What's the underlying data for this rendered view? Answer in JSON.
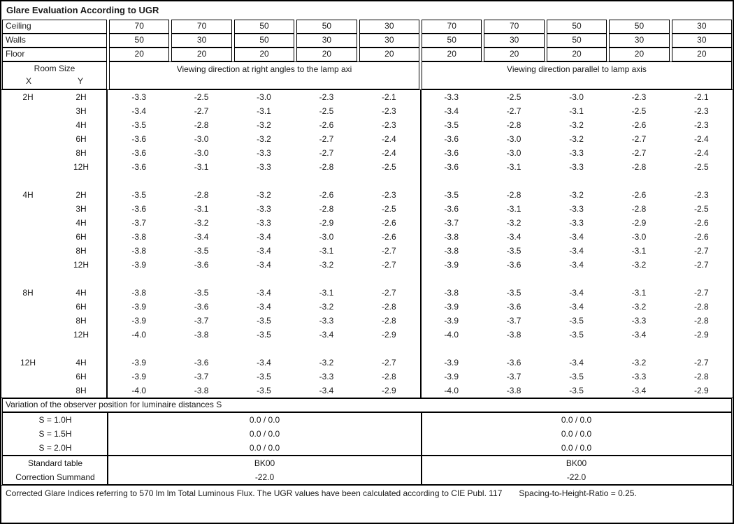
{
  "title": "Glare Evaluation According to UGR",
  "surfaces": {
    "rows": [
      {
        "label": "Ceiling",
        "values": [
          "70",
          "70",
          "50",
          "50",
          "30",
          "70",
          "70",
          "50",
          "50",
          "30"
        ]
      },
      {
        "label": "Walls",
        "values": [
          "50",
          "30",
          "50",
          "30",
          "30",
          "50",
          "30",
          "50",
          "30",
          "30"
        ]
      },
      {
        "label": "Floor",
        "values": [
          "20",
          "20",
          "20",
          "20",
          "20",
          "20",
          "20",
          "20",
          "20",
          "20"
        ]
      }
    ]
  },
  "header": {
    "room_size": "Room Size",
    "x_label": "X",
    "y_label": "Y",
    "right_angle": "Viewing direction at right angles to the lamp axi",
    "parallel": "Viewing direction parallel to lamp axis"
  },
  "ugr_rows": [
    {
      "x": "2H",
      "y": "2H",
      "values": [
        "-3.3",
        "-2.5",
        "-3.0",
        "-2.3",
        "-2.1",
        "-3.3",
        "-2.5",
        "-3.0",
        "-2.3",
        "-2.1"
      ]
    },
    {
      "x": "",
      "y": "3H",
      "values": [
        "-3.4",
        "-2.7",
        "-3.1",
        "-2.5",
        "-2.3",
        "-3.4",
        "-2.7",
        "-3.1",
        "-2.5",
        "-2.3"
      ]
    },
    {
      "x": "",
      "y": "4H",
      "values": [
        "-3.5",
        "-2.8",
        "-3.2",
        "-2.6",
        "-2.3",
        "-3.5",
        "-2.8",
        "-3.2",
        "-2.6",
        "-2.3"
      ]
    },
    {
      "x": "",
      "y": "6H",
      "values": [
        "-3.6",
        "-3.0",
        "-3.2",
        "-2.7",
        "-2.4",
        "-3.6",
        "-3.0",
        "-3.2",
        "-2.7",
        "-2.4"
      ]
    },
    {
      "x": "",
      "y": "8H",
      "values": [
        "-3.6",
        "-3.0",
        "-3.3",
        "-2.7",
        "-2.4",
        "-3.6",
        "-3.0",
        "-3.3",
        "-2.7",
        "-2.4"
      ]
    },
    {
      "x": "",
      "y": "12H",
      "values": [
        "-3.6",
        "-3.1",
        "-3.3",
        "-2.8",
        "-2.5",
        "-3.6",
        "-3.1",
        "-3.3",
        "-2.8",
        "-2.5"
      ]
    },
    {
      "x": "",
      "y": "",
      "values": []
    },
    {
      "x": "4H",
      "y": "2H",
      "values": [
        "-3.5",
        "-2.8",
        "-3.2",
        "-2.6",
        "-2.3",
        "-3.5",
        "-2.8",
        "-3.2",
        "-2.6",
        "-2.3"
      ]
    },
    {
      "x": "",
      "y": "3H",
      "values": [
        "-3.6",
        "-3.1",
        "-3.3",
        "-2.8",
        "-2.5",
        "-3.6",
        "-3.1",
        "-3.3",
        "-2.8",
        "-2.5"
      ]
    },
    {
      "x": "",
      "y": "4H",
      "values": [
        "-3.7",
        "-3.2",
        "-3.3",
        "-2.9",
        "-2.6",
        "-3.7",
        "-3.2",
        "-3.3",
        "-2.9",
        "-2.6"
      ]
    },
    {
      "x": "",
      "y": "6H",
      "values": [
        "-3.8",
        "-3.4",
        "-3.4",
        "-3.0",
        "-2.6",
        "-3.8",
        "-3.4",
        "-3.4",
        "-3.0",
        "-2.6"
      ]
    },
    {
      "x": "",
      "y": "8H",
      "values": [
        "-3.8",
        "-3.5",
        "-3.4",
        "-3.1",
        "-2.7",
        "-3.8",
        "-3.5",
        "-3.4",
        "-3.1",
        "-2.7"
      ]
    },
    {
      "x": "",
      "y": "12H",
      "values": [
        "-3.9",
        "-3.6",
        "-3.4",
        "-3.2",
        "-2.7",
        "-3.9",
        "-3.6",
        "-3.4",
        "-3.2",
        "-2.7"
      ]
    },
    {
      "x": "",
      "y": "",
      "values": []
    },
    {
      "x": "8H",
      "y": "4H",
      "values": [
        "-3.8",
        "-3.5",
        "-3.4",
        "-3.1",
        "-2.7",
        "-3.8",
        "-3.5",
        "-3.4",
        "-3.1",
        "-2.7"
      ]
    },
    {
      "x": "",
      "y": "6H",
      "values": [
        "-3.9",
        "-3.6",
        "-3.4",
        "-3.2",
        "-2.8",
        "-3.9",
        "-3.6",
        "-3.4",
        "-3.2",
        "-2.8"
      ]
    },
    {
      "x": "",
      "y": "8H",
      "values": [
        "-3.9",
        "-3.7",
        "-3.5",
        "-3.3",
        "-2.8",
        "-3.9",
        "-3.7",
        "-3.5",
        "-3.3",
        "-2.8"
      ]
    },
    {
      "x": "",
      "y": "12H",
      "values": [
        "-4.0",
        "-3.8",
        "-3.5",
        "-3.4",
        "-2.9",
        "-4.0",
        "-3.8",
        "-3.5",
        "-3.4",
        "-2.9"
      ]
    },
    {
      "x": "",
      "y": "",
      "values": []
    },
    {
      "x": "12H",
      "y": "4H",
      "values": [
        "-3.9",
        "-3.6",
        "-3.4",
        "-3.2",
        "-2.7",
        "-3.9",
        "-3.6",
        "-3.4",
        "-3.2",
        "-2.7"
      ]
    },
    {
      "x": "",
      "y": "6H",
      "values": [
        "-3.9",
        "-3.7",
        "-3.5",
        "-3.3",
        "-2.8",
        "-3.9",
        "-3.7",
        "-3.5",
        "-3.3",
        "-2.8"
      ]
    },
    {
      "x": "",
      "y": "8H",
      "values": [
        "-4.0",
        "-3.8",
        "-3.5",
        "-3.4",
        "-2.9",
        "-4.0",
        "-3.8",
        "-3.5",
        "-3.4",
        "-2.9"
      ]
    }
  ],
  "variation": {
    "label": "Variation of the observer position for luminaire distances S"
  },
  "s_rows": [
    {
      "label": "S = 1.0H",
      "left": "0.0 / 0.0",
      "right": "0.0 / 0.0"
    },
    {
      "label": "S = 1.5H",
      "left": "0.0 / 0.0",
      "right": "0.0 / 0.0"
    },
    {
      "label": "S = 2.0H",
      "left": "0.0 / 0.0",
      "right": "0.0 / 0.0"
    }
  ],
  "summary_rows": [
    {
      "label": "Standard table",
      "left": "BK00",
      "right": "BK00"
    },
    {
      "label": "Correction Summand",
      "left": "-22.0",
      "right": "-22.0"
    }
  ],
  "footer": {
    "text": "Corrected Glare Indices referring to 570 lm lm Total Luminous Flux. The UGR values have been calculated according to CIE Publ. 117",
    "ratio": "Spacing-to-Height-Ratio = 0.25."
  }
}
